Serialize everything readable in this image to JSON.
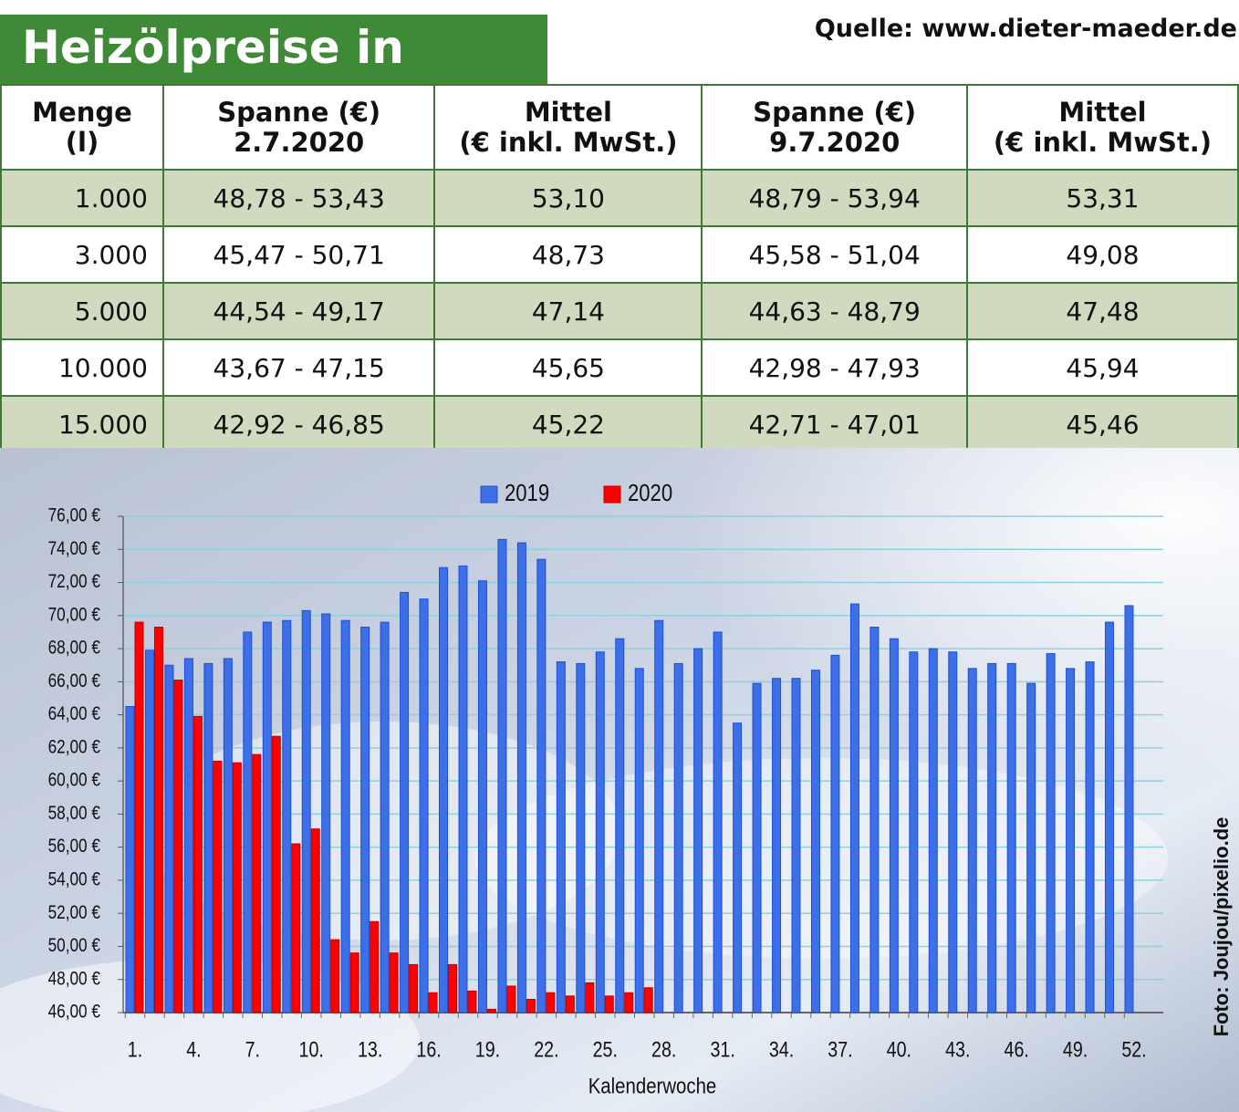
{
  "header": {
    "title": "Heizölpreise in Berlin",
    "source": "Quelle: www.dieter-maeder.de"
  },
  "table": {
    "columns": [
      [
        "Menge",
        "(l)"
      ],
      [
        "Spanne (€)",
        "2.7.2020"
      ],
      [
        "Mittel",
        "(€ inkl. MwSt.)"
      ],
      [
        "Spanne (€)",
        "9.7.2020"
      ],
      [
        "Mittel",
        "(€ inkl. MwSt.)"
      ]
    ],
    "rows": [
      [
        "1.000",
        "48,78 - 53,43",
        "53,10",
        "48,79 - 53,94",
        "53,31"
      ],
      [
        "3.000",
        "45,47 - 50,71",
        "48,73",
        "45,58 - 51,04",
        "49,08"
      ],
      [
        "5.000",
        "44,54 - 49,17",
        "47,14",
        "44,63 - 48,79",
        "47,48"
      ],
      [
        "10.000",
        "43,67 - 47,15",
        "45,65",
        "42,98 - 47,93",
        "45,94"
      ],
      [
        "15.000",
        "42,92 - 46,85",
        "45,22",
        "42,71 - 47,01",
        "45,46"
      ]
    ]
  },
  "chart_data": {
    "type": "bar",
    "x_label": "Kalenderwoche",
    "credit": "Foto: Joujou/pixelio.de",
    "categories": [
      "1.",
      null,
      null,
      "4.",
      null,
      null,
      "7.",
      null,
      null,
      "10.",
      null,
      null,
      "13.",
      null,
      null,
      "16.",
      null,
      null,
      "19.",
      null,
      null,
      "22.",
      null,
      null,
      "25.",
      null,
      null,
      "28.",
      null,
      null,
      "31.",
      null,
      null,
      "34.",
      null,
      null,
      "37.",
      null,
      null,
      "40.",
      null,
      null,
      "43.",
      null,
      null,
      "46.",
      null,
      null,
      "49.",
      null,
      null,
      "52."
    ],
    "series": [
      {
        "name": "2019",
        "color": "#3d6fe8",
        "values": [
          64.5,
          67.9,
          67.0,
          67.4,
          67.1,
          67.4,
          69.0,
          69.6,
          69.7,
          70.3,
          70.1,
          69.7,
          69.3,
          69.6,
          71.4,
          71.0,
          72.9,
          73.0,
          72.1,
          74.6,
          74.4,
          73.4,
          67.2,
          67.1,
          67.8,
          68.6,
          66.8,
          69.7,
          67.1,
          68.0,
          69.0,
          63.5,
          65.9,
          66.2,
          66.2,
          66.7,
          67.6,
          70.7,
          69.3,
          68.6,
          67.8,
          68.0,
          67.8,
          66.8,
          67.1,
          67.1,
          65.9,
          67.7,
          66.8,
          67.2,
          69.6,
          70.6
        ]
      },
      {
        "name": "2020",
        "color": "#ff0000",
        "values": [
          69.6,
          69.3,
          66.1,
          63.9,
          61.2,
          61.1,
          61.6,
          62.7,
          56.2,
          57.1,
          50.4,
          49.6,
          51.5,
          49.6,
          48.9,
          47.2,
          48.9,
          47.3,
          46.2,
          47.6,
          46.8,
          47.2,
          47.0,
          47.8,
          47.0,
          47.2,
          47.5,
          null,
          null,
          null,
          null,
          null,
          null,
          null,
          null,
          null,
          null,
          null,
          null,
          null,
          null,
          null,
          null,
          null,
          null,
          null,
          null,
          null,
          null,
          null,
          null,
          null
        ]
      }
    ],
    "ylim": [
      46,
      76
    ],
    "yticks": [
      {
        "value": 46,
        "label": "46,00 €"
      },
      {
        "value": 48,
        "label": "48,00 €"
      },
      {
        "value": 50,
        "label": "50,00 €"
      },
      {
        "value": 52,
        "label": "52,00 €"
      },
      {
        "value": 54,
        "label": "54,00 €"
      },
      {
        "value": 56,
        "label": "56,00 €"
      },
      {
        "value": 58,
        "label": "58,00 €"
      },
      {
        "value": 60,
        "label": "60,00 €"
      },
      {
        "value": 62,
        "label": "62,00 €"
      },
      {
        "value": 64,
        "label": "64,00 €"
      },
      {
        "value": 66,
        "label": "66,00 €"
      },
      {
        "value": 68,
        "label": "68,00 €"
      },
      {
        "value": 70,
        "label": "70,00 €"
      },
      {
        "value": 72,
        "label": "72,00 €"
      },
      {
        "value": 74,
        "label": "74,00 €"
      },
      {
        "value": 76,
        "label": "76,00 €"
      }
    ],
    "grid": true
  }
}
